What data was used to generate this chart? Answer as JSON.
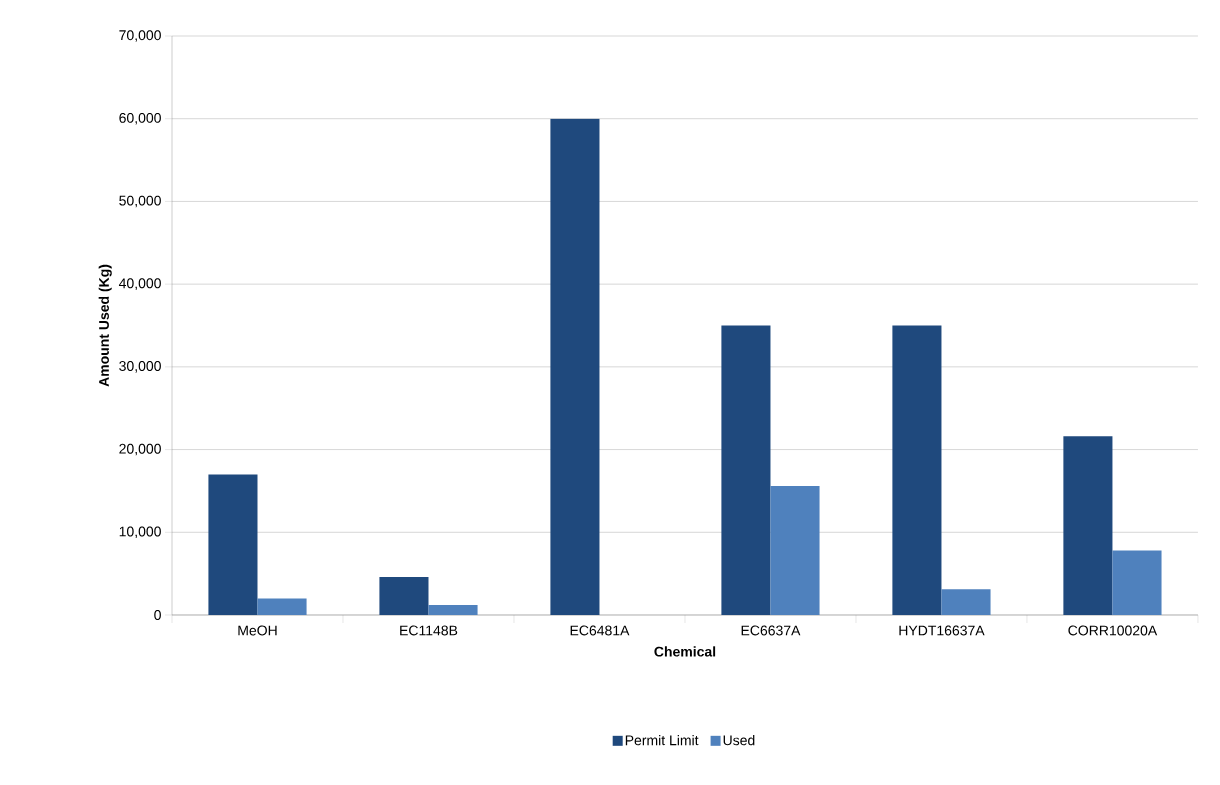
{
  "chart_data": {
    "type": "bar",
    "xlabel": "Chemical",
    "ylabel": "Amount Used (Kg)",
    "categories": [
      "MeOH",
      "EC1148B",
      "EC6481A",
      "EC6637A",
      "HYDT16637A",
      "CORR10020A"
    ],
    "series": [
      {
        "name": "Permit Limit",
        "color": "#1f497d",
        "values": [
          17000,
          4600,
          60000,
          35000,
          35000,
          21600
        ]
      },
      {
        "name": "Used",
        "color": "#4f81bd",
        "values": [
          2000,
          1200,
          null,
          15600,
          3100,
          7800
        ]
      }
    ],
    "ylim": [
      0,
      70000
    ],
    "yticks": [
      {
        "value": 0,
        "label": "0"
      },
      {
        "value": 10000,
        "label": "10,000"
      },
      {
        "value": 20000,
        "label": "20,000"
      },
      {
        "value": 30000,
        "label": "30,000"
      },
      {
        "value": 40000,
        "label": "40,000"
      },
      {
        "value": 50000,
        "label": "50,000"
      },
      {
        "value": 60000,
        "label": "60,000"
      },
      {
        "value": 70000,
        "label": "70,000"
      }
    ],
    "grid": "y",
    "legend": "bottom"
  }
}
